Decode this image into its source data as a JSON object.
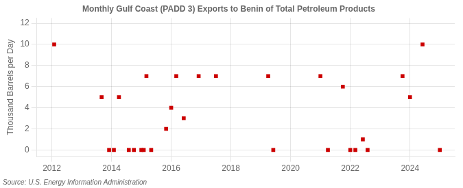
{
  "chart_data": {
    "type": "scatter",
    "title": "Monthly Gulf Coast (PADD 3) Exports to Benin of Total Petroleum Products",
    "ylabel": "Thousand Barrels per Day",
    "source": "Source: U.S. Energy Information Administration",
    "x": [
      2012.08,
      2013.67,
      2013.92,
      2014.08,
      2014.25,
      2014.58,
      2014.75,
      2015.0,
      2015.08,
      2015.17,
      2015.33,
      2015.83,
      2016.0,
      2016.17,
      2016.42,
      2016.92,
      2017.5,
      2019.25,
      2019.42,
      2021.0,
      2021.25,
      2021.75,
      2022.0,
      2022.17,
      2022.42,
      2022.58,
      2023.75,
      2024.0,
      2024.42,
      2025.0
    ],
    "values": [
      10,
      5,
      0,
      0,
      5,
      0,
      0,
      0,
      0,
      7,
      0,
      2,
      4,
      7,
      3,
      7,
      7,
      7,
      0,
      7,
      0,
      6,
      0,
      0,
      1,
      0,
      7,
      5,
      10,
      0
    ],
    "color": "#cc0000",
    "marker": "square",
    "xlim": [
      2011.5,
      2025.5
    ],
    "ylim": [
      -0.6,
      12.5
    ],
    "xticks": [
      2012,
      2014,
      2016,
      2018,
      2020,
      2022,
      2024
    ],
    "yticks": [
      0,
      2,
      4,
      6,
      8,
      10,
      12
    ],
    "grid": true
  }
}
